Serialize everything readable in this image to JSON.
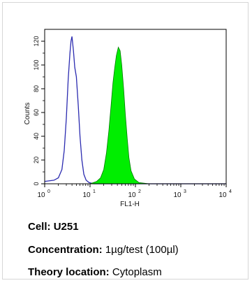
{
  "chart_data": {
    "type": "area",
    "xlabel": "FL1-H",
    "ylabel": "Counts",
    "x_scale": "log",
    "xlim": [
      1,
      10000
    ],
    "ylim": [
      0,
      130
    ],
    "x_ticks": [
      1,
      10,
      100,
      1000,
      10000
    ],
    "x_tick_labels": [
      "10",
      "10",
      "10",
      "10",
      "10"
    ],
    "x_tick_exponents": [
      "0",
      "1",
      "2",
      "3",
      "4"
    ],
    "y_ticks": [
      0,
      20,
      40,
      60,
      80,
      100,
      120
    ],
    "y_tick_labels": [
      "0",
      "20",
      "40",
      "60",
      "80",
      "100",
      "120"
    ],
    "grid": false,
    "legend": "none",
    "series": [
      {
        "style": "outline",
        "color": "#2b2bb0",
        "x": [
          1.0,
          1.6,
          2.0,
          2.4,
          2.7,
          3.0,
          3.3,
          3.6,
          3.8,
          4.0,
          4.3,
          4.6,
          5.0,
          5.5,
          6.0,
          6.6,
          7.3,
          8.2,
          9.5,
          12.0,
          20.0,
          100.0,
          10000.0
        ],
        "y": [
          2,
          3,
          5,
          12,
          28,
          55,
          88,
          110,
          120,
          124,
          112,
          98,
          90,
          66,
          40,
          20,
          8,
          3,
          1,
          0,
          0,
          0,
          0
        ]
      },
      {
        "style": "filled",
        "color": "#00ee00",
        "x": [
          1.0,
          10.0,
          14.0,
          17.0,
          20.0,
          23.0,
          26.0,
          29.0,
          32.0,
          35.0,
          38.0,
          42.0,
          46.0,
          50.0,
          55.0,
          60.0,
          66.0,
          72.0,
          80.0,
          95.0,
          120.0,
          200.0,
          1000.0,
          10000.0
        ],
        "y": [
          0,
          0,
          2,
          5,
          12,
          26,
          45,
          66,
          85,
          98,
          108,
          115,
          112,
          100,
          80,
          58,
          38,
          22,
          11,
          4,
          1,
          0,
          0,
          0
        ]
      }
    ]
  },
  "info": {
    "cell_label": "Cell:",
    "cell_value": "U251",
    "conc_label": "Concentration:",
    "conc_value": "1µg/test (100µl)",
    "loc_label": "Theory location:",
    "loc_value": "Cytoplasm"
  }
}
